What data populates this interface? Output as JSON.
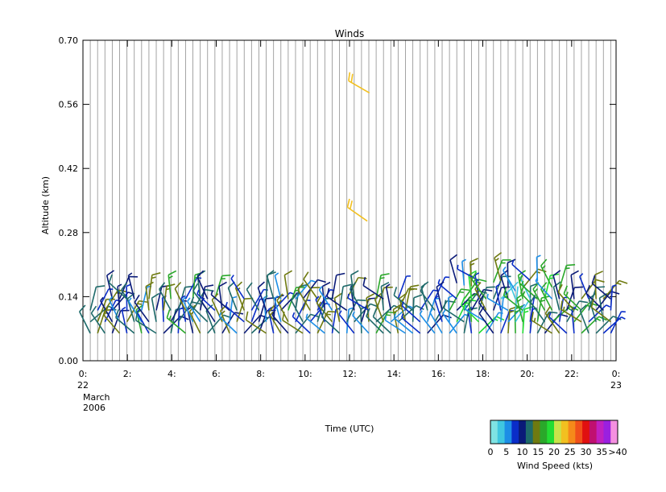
{
  "chart_data": {
    "type": "wind-barbs",
    "title": "Winds",
    "xlabel": "Time (UTC)",
    "ylabel": "Altitude (km)",
    "date_label": [
      "March",
      "2006"
    ],
    "x_ticks": [
      {
        "hour": 0,
        "label": "0:",
        "sub": "22"
      },
      {
        "hour": 2,
        "label": "2:"
      },
      {
        "hour": 4,
        "label": "4:"
      },
      {
        "hour": 6,
        "label": "6:"
      },
      {
        "hour": 8,
        "label": "8:"
      },
      {
        "hour": 10,
        "label": "10:"
      },
      {
        "hour": 12,
        "label": "12:"
      },
      {
        "hour": 14,
        "label": "14:"
      },
      {
        "hour": 16,
        "label": "16:"
      },
      {
        "hour": 18,
        "label": "18:"
      },
      {
        "hour": 20,
        "label": "20:"
      },
      {
        "hour": 22,
        "label": "22:"
      },
      {
        "hour": 24,
        "label": "0:",
        "sub": "23"
      }
    ],
    "y_ticks": [
      "0.00",
      "0.14",
      "0.28",
      "0.42",
      "0.56",
      "0.70"
    ],
    "xlim": [
      0,
      24
    ],
    "ylim": [
      0,
      0.7
    ],
    "profile_interval_hours": 0.33,
    "legend": {
      "title": "Wind Speed (kts)",
      "labels": [
        "0",
        "5",
        "10",
        "15",
        "20",
        "25",
        "30",
        "35",
        ">40"
      ],
      "colors": [
        "#7fe3e3",
        "#3fc7e0",
        "#1c8ee6",
        "#0a2dc8",
        "#0a1a78",
        "#1e6a6a",
        "#6f7a10",
        "#2aa82a",
        "#22dd33",
        "#c9e34a",
        "#f2c020",
        "#f58a1a",
        "#f0501a",
        "#e01010",
        "#c01070",
        "#c020c0",
        "#9a20e0",
        "#f590e0"
      ]
    },
    "barb_levels": [
      0.06,
      0.085,
      0.11,
      0.135
    ],
    "missing_profiles_hours": [
      12.33,
      12.67
    ],
    "high_level_barbs": [
      {
        "hour": 12.9,
        "altitude": 0.585,
        "speed_kts": 23,
        "dir_deg": 300
      },
      {
        "hour": 12.8,
        "altitude": 0.305,
        "speed_kts": 23,
        "dir_deg": 305
      }
    ]
  }
}
